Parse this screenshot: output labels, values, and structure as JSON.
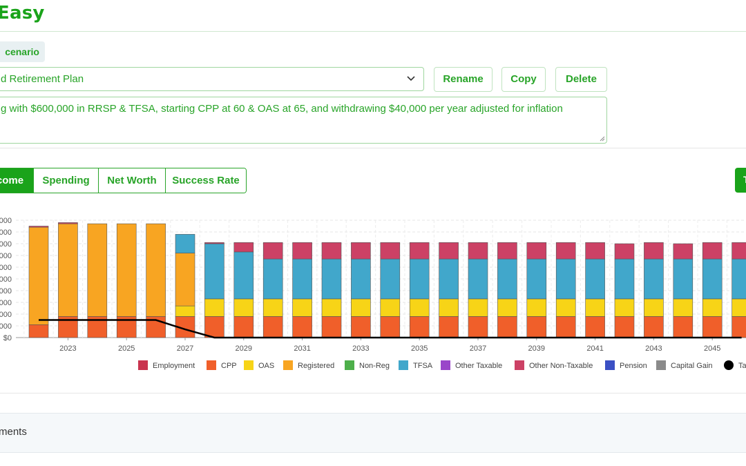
{
  "header": {
    "brand": "Easy"
  },
  "scenario": {
    "tab_label": "cenario",
    "selected_plan": "d Retirement Plan",
    "rename_label": "Rename",
    "copy_label": "Copy",
    "delete_label": "Delete",
    "description": "g with $600,000 in RRSP & TFSA, starting CPP at 60 & OAS at 65, and withdrawing $40,000 per year adjusted for inflation"
  },
  "view_tabs": [
    {
      "label": "come",
      "active": true
    },
    {
      "label": "Spending",
      "active": false
    },
    {
      "label": "Net Worth",
      "active": false
    },
    {
      "label": "Success Rate",
      "active": false
    }
  ],
  "right_button_label": "T",
  "bottom_section": {
    "title": "ments"
  },
  "colors": {
    "accent": "#1aa31a",
    "employment": "#c9344f",
    "cpp": "#f05f2a",
    "oas": "#f7d417",
    "registered": "#f8a522",
    "non_reg": "#4daf4a",
    "tfsa": "#41a7cb",
    "other_taxable": "#9a46c9",
    "other_non_taxable": "#cc4165",
    "pension": "#3b50c4",
    "capital_gain": "#8a8a8a",
    "tax_line": "#000000"
  },
  "chart_data": {
    "type": "bar",
    "stacked": true,
    "y_tick_labels": [
      "$0",
      "000",
      "000",
      "000",
      "000",
      "000",
      "000",
      "000",
      "000",
      "000",
      "000"
    ],
    "ylim": [
      0,
      10
    ],
    "x_tick_labels": [
      "2023",
      "2025",
      "2027",
      "2029",
      "2031",
      "2033",
      "2035",
      "2037",
      "2039",
      "2041",
      "2043",
      "2045"
    ],
    "years": [
      2022,
      2023,
      2024,
      2025,
      2026,
      2027,
      2028,
      2029,
      2030,
      2031,
      2032,
      2033,
      2034,
      2035,
      2036,
      2037,
      2038,
      2039,
      2040,
      2041,
      2042,
      2043,
      2044,
      2045,
      2046
    ],
    "series": [
      {
        "name": "CPP",
        "color_key": "cpp",
        "values": [
          1.1,
          1.8,
          1.8,
          1.8,
          1.8,
          1.8,
          1.8,
          1.8,
          1.8,
          1.8,
          1.8,
          1.8,
          1.8,
          1.8,
          1.8,
          1.8,
          1.8,
          1.8,
          1.8,
          1.8,
          1.8,
          1.8,
          1.8,
          1.8,
          1.8
        ]
      },
      {
        "name": "OAS",
        "color_key": "oas",
        "values": [
          0,
          0,
          0,
          0,
          0,
          0.9,
          1.5,
          1.5,
          1.5,
          1.5,
          1.5,
          1.5,
          1.5,
          1.5,
          1.5,
          1.5,
          1.5,
          1.5,
          1.5,
          1.5,
          1.5,
          1.5,
          1.5,
          1.5,
          1.5
        ]
      },
      {
        "name": "Registered",
        "color_key": "registered",
        "values": [
          8.3,
          7.9,
          7.9,
          7.9,
          7.9,
          4.5,
          0,
          0,
          0,
          0,
          0,
          0,
          0,
          0,
          0,
          0,
          0,
          0,
          0,
          0,
          0,
          0,
          0,
          0,
          0
        ]
      },
      {
        "name": "TFSA",
        "color_key": "tfsa",
        "values": [
          0,
          0,
          0,
          0,
          0,
          1.6,
          4.7,
          4.0,
          3.4,
          3.4,
          3.4,
          3.4,
          3.4,
          3.4,
          3.4,
          3.4,
          3.4,
          3.4,
          3.4,
          3.4,
          3.4,
          3.4,
          3.4,
          3.4,
          3.4
        ]
      },
      {
        "name": "Other Non-Taxable",
        "color_key": "other_non_taxable",
        "values": [
          0.1,
          0.1,
          0,
          0,
          0,
          0,
          0.1,
          0.8,
          1.4,
          1.4,
          1.4,
          1.4,
          1.4,
          1.4,
          1.4,
          1.4,
          1.4,
          1.4,
          1.4,
          1.4,
          1.3,
          1.4,
          1.3,
          1.4,
          1.4
        ]
      }
    ],
    "line_series": {
      "name": "Ta",
      "color_key": "tax_line",
      "values": [
        1.5,
        1.5,
        1.5,
        1.5,
        1.5,
        0.7,
        0,
        0,
        0,
        0,
        0,
        0,
        0,
        0,
        0,
        0,
        0,
        0,
        0,
        0,
        0,
        0,
        0,
        0,
        0
      ]
    },
    "legend": [
      {
        "label": "Employment",
        "color_key": "employment",
        "shape": "square"
      },
      {
        "label": "CPP",
        "color_key": "cpp",
        "shape": "square"
      },
      {
        "label": "OAS",
        "color_key": "oas",
        "shape": "square"
      },
      {
        "label": "Registered",
        "color_key": "registered",
        "shape": "square"
      },
      {
        "label": "Non-Reg",
        "color_key": "non_reg",
        "shape": "square"
      },
      {
        "label": "TFSA",
        "color_key": "tfsa",
        "shape": "square"
      },
      {
        "label": "Other Taxable",
        "color_key": "other_taxable",
        "shape": "square"
      },
      {
        "label": "Other Non-Taxable",
        "color_key": "other_non_taxable",
        "shape": "square"
      },
      {
        "label": "Pension",
        "color_key": "pension",
        "shape": "square"
      },
      {
        "label": "Capital Gain",
        "color_key": "capital_gain",
        "shape": "square"
      },
      {
        "label": "Ta",
        "color_key": "tax_line",
        "shape": "circle"
      }
    ],
    "legend_position": "bottom",
    "grid": true
  }
}
